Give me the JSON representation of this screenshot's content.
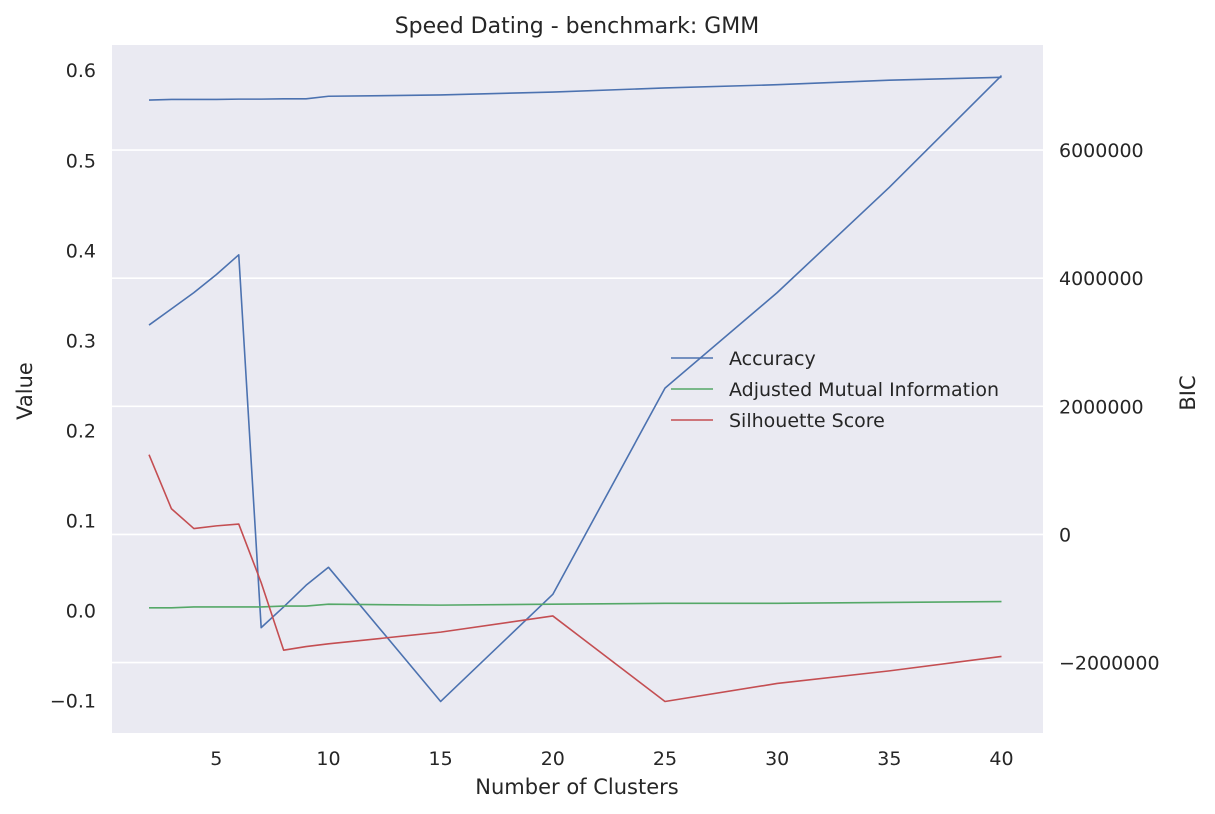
{
  "chart_data": {
    "type": "line",
    "title": "Speed Dating - benchmark: GMM",
    "xlabel": "Number of Clusters",
    "ylabel": "Value",
    "y2label": "BIC",
    "xlim": [
      0.35,
      41.85
    ],
    "ylim": [
      -0.136,
      0.628
    ],
    "y2lim": [
      -3100000,
      7640000
    ],
    "xticks": [
      5,
      10,
      15,
      20,
      25,
      30,
      35,
      40
    ],
    "xtick_labels": [
      "5",
      "10",
      "15",
      "20",
      "25",
      "30",
      "35",
      "40"
    ],
    "yticks": [
      -0.1,
      0.0,
      0.1,
      0.2,
      0.3,
      0.4,
      0.5,
      0.6
    ],
    "ytick_labels": [
      "−0.1",
      "0.0",
      "0.1",
      "0.2",
      "0.3",
      "0.4",
      "0.5",
      "0.6"
    ],
    "y2ticks": [
      -2000000,
      0,
      2000000,
      4000000,
      6000000
    ],
    "y2tick_labels": [
      "−2000000",
      "0",
      "2000000",
      "4000000",
      "6000000"
    ],
    "grid": true,
    "legend_position": "center-right",
    "series": [
      {
        "name": "Accuracy",
        "color": "#4c72b0",
        "axis": "left",
        "x": [
          2,
          3,
          4,
          5,
          6,
          7,
          8,
          9,
          10,
          15,
          20,
          25,
          30,
          35,
          40
        ],
        "values": [
          0.317,
          0.335,
          0.353,
          0.373,
          0.395,
          -0.019,
          0.004,
          0.028,
          0.048,
          -0.101,
          0.018,
          0.247,
          0.353,
          0.47,
          0.594
        ]
      },
      {
        "name": "Adjusted Mutual Information",
        "color": "#55a868",
        "axis": "left",
        "x": [
          2,
          3,
          4,
          5,
          6,
          7,
          8,
          9,
          10,
          15,
          20,
          25,
          30,
          35,
          40
        ],
        "values": [
          0.003,
          0.003,
          0.004,
          0.004,
          0.004,
          0.004,
          0.005,
          0.005,
          0.007,
          0.006,
          0.007,
          0.008,
          0.008,
          0.009,
          0.01
        ]
      },
      {
        "name": "Silhouette Score",
        "color": "#c44e52",
        "axis": "left",
        "x": [
          2,
          3,
          4,
          5,
          6,
          7,
          8,
          9,
          10,
          15,
          20,
          25,
          30,
          35,
          40
        ],
        "values": [
          0.173,
          0.113,
          0.091,
          0.094,
          0.096,
          0.031,
          -0.044,
          -0.04,
          -0.037,
          -0.024,
          -0.006,
          -0.101,
          -0.081,
          -0.067,
          -0.051
        ]
      },
      {
        "name": "",
        "color": "#4c72b0",
        "axis": "right",
        "x": [
          2,
          3,
          4,
          5,
          6,
          7,
          8,
          9,
          10,
          15,
          20,
          25,
          30,
          35,
          40
        ],
        "values": [
          6780000,
          6790000,
          6790000,
          6790000,
          6795000,
          6795000,
          6800000,
          6800000,
          6840000,
          6860000,
          6905000,
          6970000,
          7020000,
          7090000,
          7135000
        ]
      }
    ]
  }
}
